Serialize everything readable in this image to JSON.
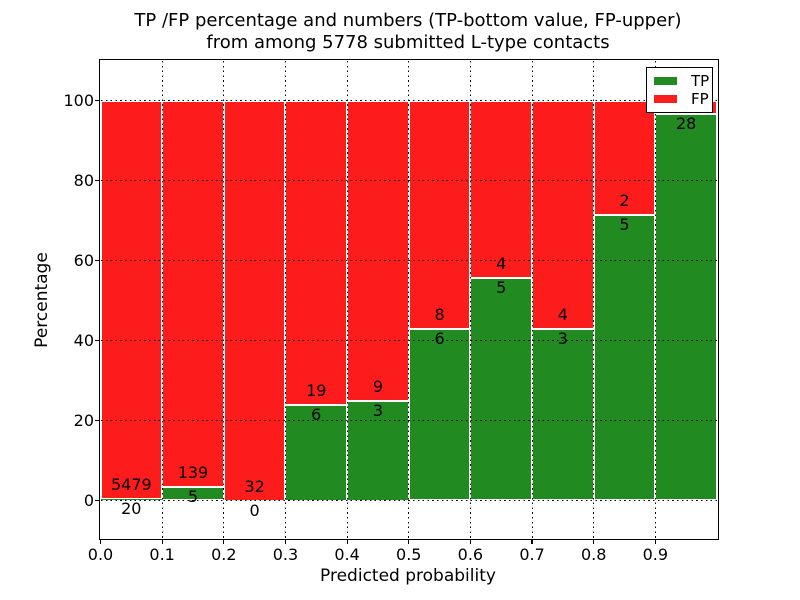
{
  "title": {
    "line1": "TP /FP percentage and numbers (TP-bottom value, FP-upper)",
    "line2": "from among 5778 submitted L-type contacts"
  },
  "axes": {
    "xlabel": "Predicted probability",
    "ylabel": "Percentage",
    "x_tick_labels": [
      "0.0",
      "0.1",
      "0.2",
      "0.3",
      "0.4",
      "0.5",
      "0.6",
      "0.7",
      "0.8",
      "0.9"
    ],
    "y_tick_labels": [
      "0",
      "20",
      "40",
      "60",
      "80",
      "100"
    ],
    "y_tick_values": [
      0,
      20,
      40,
      60,
      80,
      100
    ],
    "ylim": [
      -10,
      110
    ],
    "xlim": [
      0.0,
      1.0
    ],
    "grid_style": "dotted"
  },
  "legend": {
    "items": [
      {
        "label": "TP",
        "color": "#218a21"
      },
      {
        "label": "FP",
        "color": "#fd1c1c"
      }
    ],
    "position": "upper-right"
  },
  "colors": {
    "tp_green": "#218a21",
    "fp_red": "#fd1c1c",
    "background": "#ffffff",
    "grid": "#000000",
    "bar_edge": "#ffffff"
  },
  "chart_data": {
    "type": "bar",
    "stacked": true,
    "total_label": "5778",
    "bin_edges": [
      0.0,
      0.1,
      0.2,
      0.3,
      0.4,
      0.5,
      0.6,
      0.7,
      0.8,
      0.9,
      1.0
    ],
    "series": [
      {
        "name": "TP",
        "counts": [
          20,
          5,
          0,
          6,
          3,
          6,
          5,
          3,
          5,
          28
        ]
      },
      {
        "name": "FP",
        "counts": [
          5479,
          139,
          32,
          19,
          9,
          8,
          4,
          4,
          2,
          null
        ]
      }
    ],
    "tp_percent": [
      0.36,
      3.47,
      0,
      24,
      25,
      42.86,
      55.56,
      42.86,
      71.43,
      96.55
    ],
    "annotations": {
      "fp_labels": [
        "5479",
        "139",
        "32",
        "19",
        "9",
        "8",
        "4",
        "4",
        "2",
        ""
      ],
      "tp_labels": [
        "20",
        "5",
        "0",
        "6",
        "3",
        "6",
        "5",
        "3",
        "5",
        "28"
      ]
    }
  }
}
